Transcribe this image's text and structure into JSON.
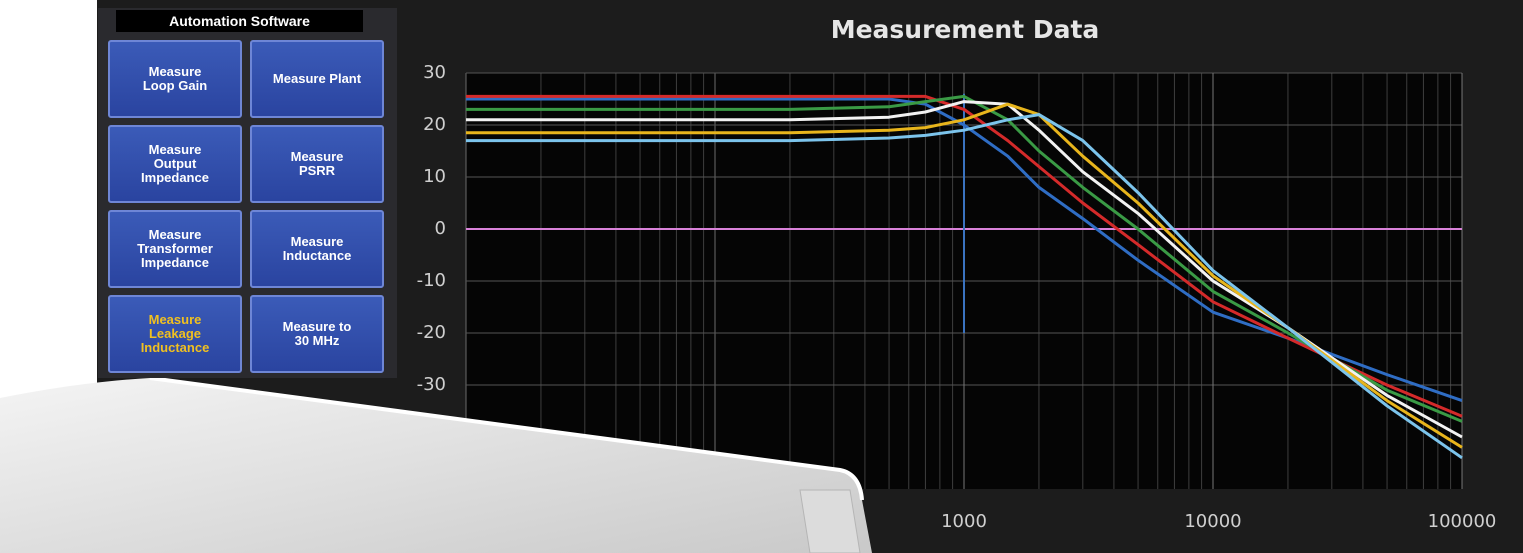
{
  "panel": {
    "title": "Automation Software",
    "buttons": [
      {
        "label": "Measure\nLoop Gain",
        "selected": false
      },
      {
        "label": "Measure Plant",
        "selected": false
      },
      {
        "label": "Measure\nOutput\nImpedance",
        "selected": false
      },
      {
        "label": "Measure\nPSRR",
        "selected": false
      },
      {
        "label": "Measure\nTransformer\nImpedance",
        "selected": false
      },
      {
        "label": "Measure\nInductance",
        "selected": false
      },
      {
        "label": "Measure\nLeakage\nInductance",
        "selected": true
      },
      {
        "label": "Measure to\n30 MHz",
        "selected": false
      }
    ]
  },
  "chart_data": {
    "type": "line",
    "title": "Measurement Data",
    "log_x": true,
    "grid": true,
    "x": [
      10,
      20,
      50,
      100,
      200,
      500,
      700,
      1000,
      1500,
      2000,
      3000,
      5000,
      10000,
      20000,
      50000,
      100000
    ],
    "xlim": [
      10,
      100000
    ],
    "xticks": [
      1000,
      10000,
      100000
    ],
    "ylim": [
      -50,
      30
    ],
    "yticks": [
      30,
      20,
      10,
      0,
      -10,
      -20,
      -30
    ],
    "reference_lines": [
      {
        "axis": "y",
        "value": 0,
        "color": "#d982d9"
      },
      {
        "axis": "x",
        "value": 1000,
        "from": -20,
        "to": 26,
        "color": "#3a73c0"
      }
    ],
    "series": [
      {
        "color": "#2f6dc4",
        "values": [
          25,
          25,
          25,
          25,
          25,
          25,
          24,
          20,
          14,
          8,
          2,
          -6,
          -16,
          -21,
          -28,
          -33
        ]
      },
      {
        "color": "#d42a2a",
        "values": [
          25.5,
          25.5,
          25.5,
          25.5,
          25.5,
          25.5,
          25.5,
          23,
          17,
          12,
          5,
          -3,
          -14,
          -21,
          -30,
          -36
        ]
      },
      {
        "color": "#3a9a45",
        "values": [
          23,
          23,
          23,
          23,
          23,
          23.5,
          24.5,
          25.5,
          21,
          15,
          8,
          0,
          -12,
          -20,
          -31,
          -37
        ]
      },
      {
        "color": "#f2f2f2",
        "values": [
          21,
          21,
          21,
          21,
          21,
          21.5,
          22.5,
          24.5,
          24,
          19,
          11,
          3,
          -10,
          -19,
          -32,
          -40
        ]
      },
      {
        "color": "#e8b51c",
        "values": [
          18.5,
          18.5,
          18.5,
          18.5,
          18.5,
          19,
          19.5,
          21,
          24,
          22,
          14,
          5,
          -9,
          -19,
          -33,
          -42
        ]
      },
      {
        "color": "#7cc4ec",
        "values": [
          17,
          17,
          17,
          17,
          17,
          17.5,
          18,
          19,
          21,
          22,
          17,
          7,
          -8,
          -19,
          -34,
          -44
        ]
      }
    ]
  }
}
